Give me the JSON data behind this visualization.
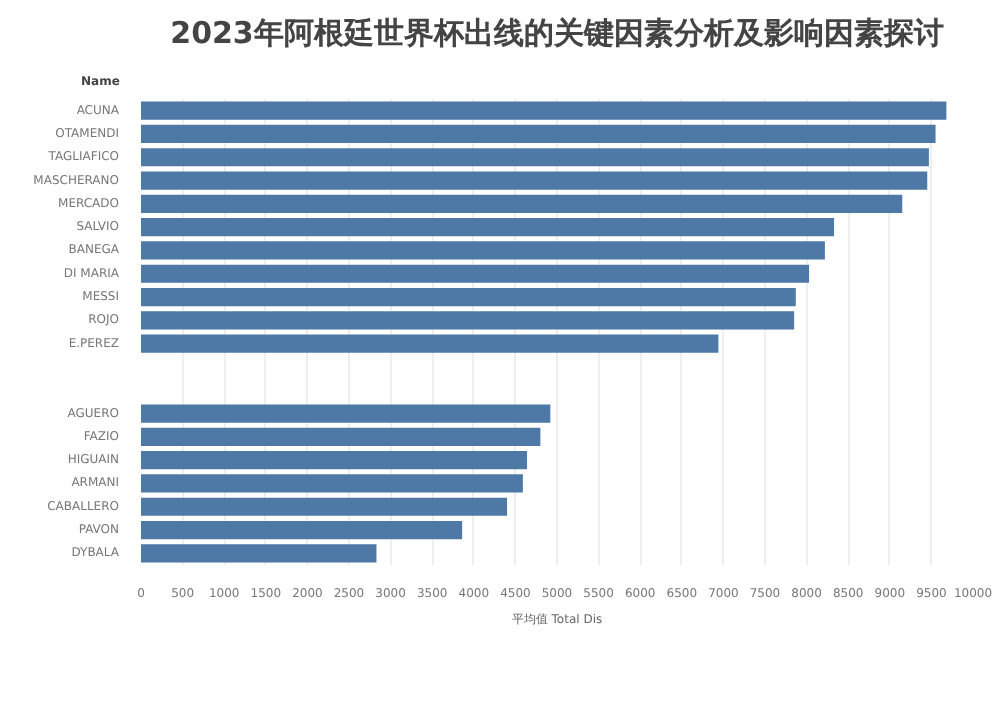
{
  "chart_data": {
    "type": "bar",
    "orientation": "horizontal",
    "title": "2023年阿根廷世界杯出线的关键因素分析及影响因素探讨",
    "ylabel": "Name",
    "xlabel": "平均值 Total Dis",
    "categories": [
      "ACUNA",
      "OTAMENDI",
      "TAGLIAFICO",
      "MASCHERANO",
      "MERCADO",
      "SALVIO",
      "BANEGA",
      "DI MARIA",
      "MESSI",
      "ROJO",
      "E.PEREZ",
      null,
      null,
      "AGUERO",
      "FAZIO",
      "HIGUAIN",
      "ARMANI",
      "CABALLERO",
      "PAVON",
      "DYBALA"
    ],
    "values": [
      9680,
      9550,
      9470,
      9450,
      9150,
      8330,
      8220,
      8030,
      7870,
      7850,
      6940,
      null,
      null,
      4920,
      4800,
      4640,
      4590,
      4400,
      3860,
      2830
    ],
    "color": "#4e79a7",
    "xlim": [
      0,
      10000
    ],
    "xticks": [
      0,
      500,
      1000,
      1500,
      2000,
      2500,
      3000,
      3500,
      4000,
      4500,
      5000,
      5500,
      6000,
      6500,
      7000,
      7500,
      8000,
      8500,
      9000,
      9500,
      10000
    ],
    "grid": "x"
  }
}
